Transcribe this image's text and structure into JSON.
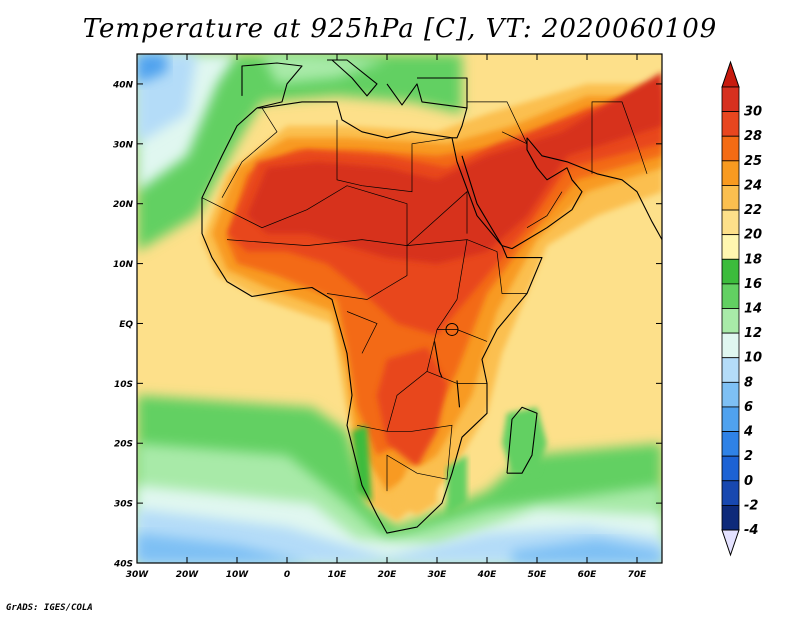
{
  "title": "Temperature at 925hPa [C], VT: 2020060109",
  "credit": "GrADS: IGES/COLA",
  "map": {
    "lon_range": [
      -30,
      75
    ],
    "lat_range": [
      -40,
      45
    ],
    "lat_ticks": [
      {
        "value": 40,
        "label": "40N"
      },
      {
        "value": 30,
        "label": "30N"
      },
      {
        "value": 20,
        "label": "20N"
      },
      {
        "value": 10,
        "label": "10N"
      },
      {
        "value": 0,
        "label": "EQ"
      },
      {
        "value": -10,
        "label": "10S"
      },
      {
        "value": -20,
        "label": "20S"
      },
      {
        "value": -30,
        "label": "30S"
      },
      {
        "value": -40,
        "label": "40S"
      }
    ],
    "lon_ticks": [
      {
        "value": -30,
        "label": "30W"
      },
      {
        "value": -20,
        "label": "20W"
      },
      {
        "value": -10,
        "label": "10W"
      },
      {
        "value": 0,
        "label": "0"
      },
      {
        "value": 10,
        "label": "10E"
      },
      {
        "value": 20,
        "label": "20E"
      },
      {
        "value": 30,
        "label": "30E"
      },
      {
        "value": 40,
        "label": "40E"
      },
      {
        "value": 50,
        "label": "50E"
      },
      {
        "value": 60,
        "label": "60E"
      },
      {
        "value": 70,
        "label": "70E"
      }
    ]
  },
  "colorbar": {
    "levels": [
      {
        "label": "30",
        "color": "#d7301f"
      },
      {
        "label": "28",
        "color": "#e8461f"
      },
      {
        "label": "25",
        "color": "#f36b14"
      },
      {
        "label": "24",
        "color": "#f89a20"
      },
      {
        "label": "22",
        "color": "#fbbf4f"
      },
      {
        "label": "20",
        "color": "#fde08a"
      },
      {
        "label": "18",
        "color": "#fff7b0"
      },
      {
        "label": "16",
        "color": "#3cbc3c"
      },
      {
        "label": "14",
        "color": "#62d062"
      },
      {
        "label": "12",
        "color": "#a8eaa8"
      },
      {
        "label": "10",
        "color": "#e0f7f0"
      },
      {
        "label": "8",
        "color": "#b4dcf8"
      },
      {
        "label": "6",
        "color": "#7ec0f4"
      },
      {
        "label": "4",
        "color": "#50a2ee"
      },
      {
        "label": "2",
        "color": "#2f82e6"
      },
      {
        "label": "0",
        "color": "#1c62d4"
      },
      {
        "label": "-2",
        "color": "#1848b0"
      },
      {
        "label": "-4",
        "color": "#0e2a7a"
      }
    ],
    "top_arrow_color": "#c71a0e",
    "bottom_arrow_color": "#e4e2ff"
  },
  "palette": {
    "hot": "#d7301f",
    "red2": "#e8461f",
    "orange1": "#f36b14",
    "orange2": "#f89a20",
    "gold": "#fbbf4f",
    "sand": "#fde08a",
    "green1": "#3cbc3c",
    "green2": "#62d062",
    "green3": "#a8eaa8",
    "cyan": "#e0f7f0",
    "blue1": "#b4dcf8",
    "blue2": "#7ec0f4",
    "blue3": "#50a2ee"
  }
}
